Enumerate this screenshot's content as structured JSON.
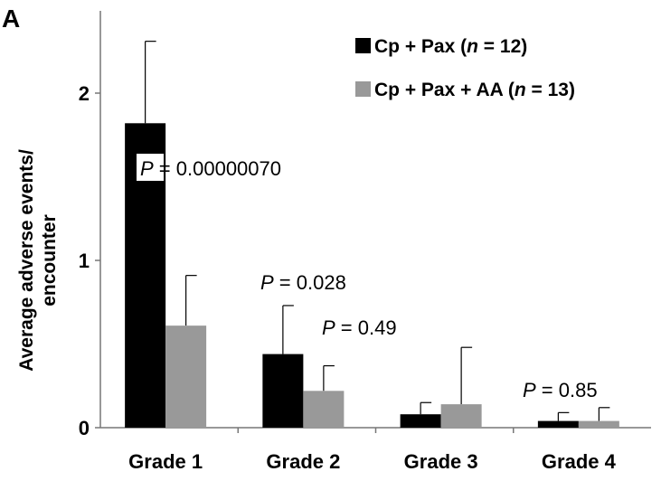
{
  "chart_data": {
    "type": "bar",
    "panel_label": "A",
    "title": "",
    "xlabel": "",
    "ylabel_lines": [
      "Average adverse events/",
      "encounter"
    ],
    "ylim": [
      0,
      2.4
    ],
    "yticks": [
      "0",
      "1",
      "2"
    ],
    "ytick_values": [
      0,
      1,
      2
    ],
    "categories": [
      "Grade 1",
      "Grade 2",
      "Grade 3",
      "Grade 4"
    ],
    "series": [
      {
        "name": "Cp + Pax (n = 12)",
        "name_parts": [
          "Cp + Pax (",
          "n",
          " = 12)"
        ],
        "color": "#000000",
        "values": [
          1.82,
          0.44,
          0.08,
          0.04
        ],
        "error_upper": [
          2.31,
          0.73,
          0.15,
          0.09
        ]
      },
      {
        "name": "Cp + Pax + AA (n = 13)",
        "name_parts": [
          "Cp + Pax + AA (",
          "n",
          " = 13)"
        ],
        "color": "#999999",
        "values": [
          0.61,
          0.22,
          0.14,
          0.04
        ],
        "error_upper": [
          0.91,
          0.37,
          0.48,
          0.12
        ]
      }
    ],
    "annotations": [
      {
        "p": "P",
        "text": " = 0.00000070"
      },
      {
        "p": "P",
        "text": " = 0.028"
      },
      {
        "p": "P",
        "text": " = 0.49"
      },
      {
        "p": "P",
        "text": " = 0.85"
      }
    ],
    "legend_position": "top-right",
    "grid": false
  }
}
